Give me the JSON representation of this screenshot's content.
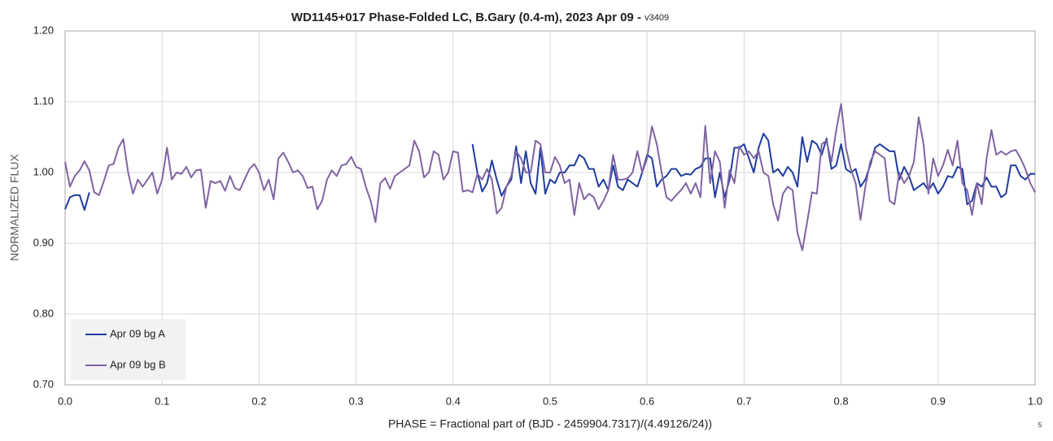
{
  "chart_data": {
    "type": "line",
    "title": "WD1145+017 Phase-Folded LC, B.Gary (0.4-m), 2023 Apr 09 - ",
    "version": "v3409",
    "corner_note": "5",
    "xlabel": "PHASE = Fractional part of (BJD - 2459904.7317)/(4.49126/24))",
    "ylabel": "NORMALIZED FLUX",
    "xlim": [
      0,
      1
    ],
    "ylim": [
      0.7,
      1.2
    ],
    "xticks": [
      {
        "value": 0,
        "label": "0.0"
      },
      0.1,
      0.2,
      0.3,
      0.4,
      0.5,
      0.6,
      0.7,
      0.8,
      0.9,
      {
        "value": 1,
        "label": "1.0"
      }
    ],
    "yticks": [
      {
        "value": 0.7,
        "label": "0.70"
      },
      {
        "value": 0.8,
        "label": "0.80"
      },
      {
        "value": 0.9,
        "label": "0.90"
      },
      {
        "value": 1.0,
        "label": "1.00"
      },
      {
        "value": 1.1,
        "label": "1.10"
      },
      {
        "value": 1.2,
        "label": "1.20"
      }
    ],
    "grid": true,
    "legend": "lower-left",
    "x": [
      0,
      0.005,
      0.01,
      0.015,
      0.02,
      0.025,
      0.03,
      0.035,
      0.04,
      0.045,
      0.05,
      0.055,
      0.06,
      0.065,
      0.07,
      0.075,
      0.08,
      0.085,
      0.09,
      0.095,
      0.1,
      0.105,
      0.11,
      0.115,
      0.12,
      0.125,
      0.13,
      0.135,
      0.14,
      0.145,
      0.15,
      0.155,
      0.16,
      0.165,
      0.17,
      0.175,
      0.18,
      0.185,
      0.19,
      0.195,
      0.2,
      0.205,
      0.21,
      0.215,
      0.22,
      0.225,
      0.23,
      0.235,
      0.24,
      0.245,
      0.25,
      0.255,
      0.26,
      0.265,
      0.27,
      0.275,
      0.28,
      0.285,
      0.29,
      0.295,
      0.3,
      0.305,
      0.31,
      0.315,
      0.32,
      0.325,
      0.33,
      0.335,
      0.34,
      0.345,
      0.35,
      0.355,
      0.36,
      0.365,
      0.37,
      0.375,
      0.38,
      0.385,
      0.39,
      0.395,
      0.4,
      0.405,
      0.41,
      0.415,
      0.42,
      0.425,
      0.43,
      0.435,
      0.44,
      0.445,
      0.45,
      0.455,
      0.46,
      0.465,
      0.47,
      0.475,
      0.48,
      0.485,
      0.49,
      0.495,
      0.5,
      0.505,
      0.51,
      0.515,
      0.52,
      0.525,
      0.53,
      0.535,
      0.54,
      0.545,
      0.55,
      0.555,
      0.56,
      0.565,
      0.57,
      0.575,
      0.58,
      0.585,
      0.59,
      0.595,
      0.6,
      0.605,
      0.61,
      0.615,
      0.62,
      0.625,
      0.63,
      0.635,
      0.64,
      0.645,
      0.65,
      0.655,
      0.66,
      0.665,
      0.67,
      0.675,
      0.68,
      0.685,
      0.69,
      0.695,
      0.7,
      0.705,
      0.71,
      0.715,
      0.72,
      0.725,
      0.73,
      0.735,
      0.74,
      0.745,
      0.75,
      0.755,
      0.76,
      0.765,
      0.77,
      0.775,
      0.78,
      0.785,
      0.79,
      0.795,
      0.8,
      0.805,
      0.81,
      0.815,
      0.82,
      0.825,
      0.83,
      0.835,
      0.84,
      0.845,
      0.85,
      0.855,
      0.86,
      0.865,
      0.87,
      0.875,
      0.88,
      0.885,
      0.89,
      0.895,
      0.9,
      0.905,
      0.91,
      0.915,
      0.92,
      0.925,
      0.93,
      0.935,
      0.94,
      0.945,
      0.95,
      0.955,
      0.96,
      0.965,
      0.97,
      0.975,
      0.98,
      0.985,
      0.99,
      0.995,
      1
    ],
    "series": [
      {
        "name": "Apr 09 bg A",
        "color": "#1f3d9e",
        "values": [
          0.948,
          0.965,
          0.968,
          0.968,
          0.947,
          0.972,
          null,
          null,
          null,
          null,
          null,
          null,
          null,
          null,
          null,
          null,
          null,
          null,
          null,
          null,
          null,
          null,
          null,
          null,
          null,
          null,
          null,
          null,
          null,
          null,
          null,
          null,
          null,
          null,
          null,
          null,
          null,
          null,
          null,
          null,
          null,
          null,
          null,
          null,
          null,
          null,
          null,
          null,
          null,
          null,
          null,
          null,
          null,
          null,
          null,
          null,
          null,
          null,
          null,
          null,
          null,
          null,
          null,
          null,
          null,
          null,
          null,
          null,
          null,
          null,
          null,
          null,
          null,
          null,
          null,
          null,
          null,
          null,
          null,
          null,
          null,
          null,
          null,
          null,
          1.04,
          1.0,
          0.973,
          0.985,
          1.017,
          0.99,
          0.967,
          0.98,
          0.99,
          1.037,
          0.985,
          1.03,
          0.985,
          0.97,
          1.035,
          0.97,
          0.99,
          0.985,
          1.0,
          1.0,
          1.01,
          1.01,
          1.025,
          1.02,
          1.005,
          1.005,
          0.98,
          0.99,
          0.975,
          1.01,
          0.98,
          0.975,
          0.99,
          0.985,
          0.98,
          1.0,
          1.025,
          1.02,
          0.98,
          0.99,
          0.995,
          1.005,
          1.005,
          0.995,
          0.998,
          0.997,
          1.005,
          1.008,
          1.02,
          1.02,
          0.965,
          1.0,
          0.965,
          0.99,
          1.035,
          1.035,
          1.04,
          1.02,
          1.0,
          1.035,
          1.055,
          1.045,
          1.0,
          1.005,
          0.995,
          1.008,
          1.0,
          0.98,
          1.05,
          1.015,
          1.045,
          1.04,
          1.025,
          1.048,
          1.005,
          1.01,
          1.04,
          1.005,
          1.0,
          1.005,
          0.98,
          0.99,
          1.01,
          1.035,
          1.04,
          1.035,
          1.03,
          1.03,
          0.99,
          1.008,
          0.995,
          0.975,
          0.98,
          0.985,
          0.975,
          0.985,
          0.97,
          0.98,
          0.995,
          0.993,
          1.008,
          1.005,
          0.955,
          0.96,
          0.985,
          0.98,
          0.993,
          0.98,
          0.98,
          0.965,
          0.97,
          1.01,
          1.01,
          0.995,
          0.99,
          0.998,
          0.998
        ]
      },
      {
        "name": "Apr 09 bg B",
        "color": "#8064a2",
        "values": [
          1.015,
          0.98,
          0.995,
          1.003,
          1.016,
          1.003,
          0.972,
          0.968,
          0.988,
          1.01,
          1.012,
          1.035,
          1.047,
          1.0,
          0.97,
          0.99,
          0.98,
          0.99,
          1.0,
          0.97,
          0.99,
          1.035,
          0.99,
          1.0,
          0.998,
          1.008,
          0.993,
          1.003,
          1.004,
          0.95,
          0.988,
          0.985,
          0.988,
          0.974,
          0.995,
          0.978,
          0.975,
          0.99,
          1.005,
          1.012,
          1.0,
          0.975,
          0.99,
          0.962,
          1.02,
          1.028,
          1.015,
          1.0,
          1.003,
          0.995,
          0.978,
          0.98,
          0.948,
          0.96,
          0.99,
          1.003,
          0.995,
          1.01,
          1.012,
          1.022,
          1.008,
          1.005,
          0.98,
          0.96,
          0.93,
          0.985,
          0.992,
          0.977,
          0.995,
          1.0,
          1.005,
          1.01,
          1.045,
          1.03,
          0.993,
          1.0,
          1.03,
          1.025,
          0.99,
          1.0,
          1.03,
          1.028,
          0.973,
          0.975,
          0.972,
          0.998,
          0.99,
          1.005,
          0.99,
          0.942,
          0.95,
          0.98,
          0.995,
          1.03,
          1.02,
          1.0,
          1.0,
          1.045,
          1.04,
          1.0,
          1.0,
          1.022,
          1.01,
          0.985,
          0.99,
          0.94,
          0.985,
          0.962,
          0.97,
          0.965,
          0.948,
          0.96,
          0.975,
          1.025,
          0.99,
          0.99,
          0.992,
          1.0,
          1.03,
          1.0,
          1.02,
          1.065,
          1.04,
          1.0,
          0.965,
          0.96,
          0.968,
          0.975,
          0.985,
          0.97,
          0.985,
          0.965,
          1.066,
          0.985,
          1.03,
          1.015,
          0.95,
          1.003,
          0.985,
          1.037,
          1.025,
          1.03,
          1.02,
          1.03,
          1.0,
          0.995,
          0.955,
          0.932,
          0.97,
          0.98,
          0.975,
          0.915,
          0.89,
          0.93,
          0.972,
          0.97,
          1.04,
          1.045,
          1.015,
          1.06,
          1.097,
          1.035,
          1.005,
          0.985,
          0.933,
          0.98,
          1.015,
          1.03,
          1.025,
          1.02,
          0.96,
          0.955,
          1.0,
          0.985,
          0.995,
          1.015,
          1.078,
          1.04,
          0.97,
          1.02,
          0.995,
          1.01,
          1.032,
          1.01,
          1.045,
          0.985,
          0.975,
          0.94,
          0.985,
          0.955,
          1.02,
          1.06,
          1.025,
          1.03,
          1.025,
          1.03,
          1.032,
          1.02,
          1.005,
          0.985,
          0.972
        ]
      }
    ]
  }
}
